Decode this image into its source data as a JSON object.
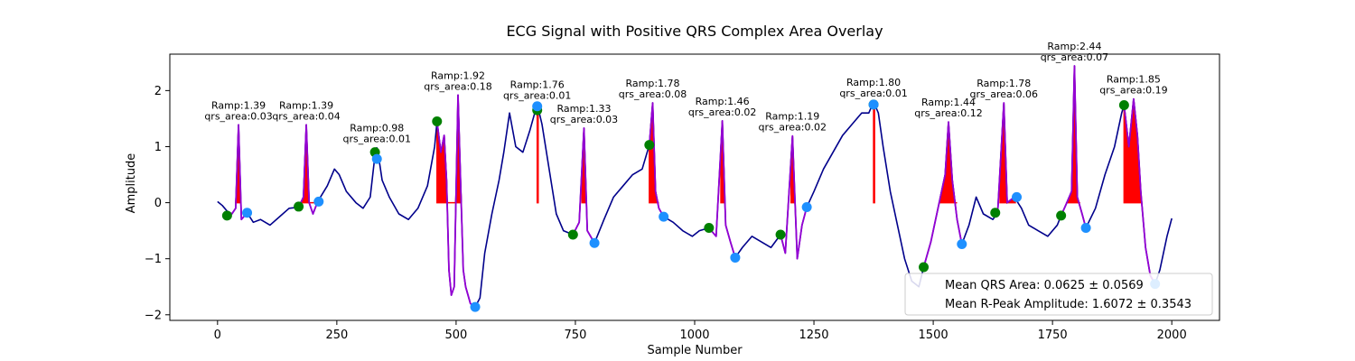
{
  "chart_data": {
    "type": "line",
    "title": "ECG Signal with Positive QRS Complex Area Overlay",
    "xlabel": "Sample Number",
    "ylabel": "Amplitude",
    "xlim": [
      -100,
      2100
    ],
    "ylim": [
      -2.1,
      2.65
    ],
    "x_ticks": [
      0,
      250,
      500,
      750,
      1000,
      1250,
      1500,
      1750,
      2000
    ],
    "y_ticks": [
      -2,
      -1,
      0,
      1,
      2
    ],
    "grid": false,
    "colors": {
      "signal": "#00008b",
      "qrs_segment": "#9400d3",
      "area_fill": "#ff0000",
      "onset_marker": "#008000",
      "offset_marker": "#1e90ff",
      "rpeak_marker": "#1e90ff"
    },
    "signal_keypoints": [
      [
        0,
        0.02
      ],
      [
        10,
        -0.05
      ],
      [
        20,
        -0.15
      ],
      [
        30,
        -0.2
      ],
      [
        38,
        -0.1
      ],
      [
        44,
        1.39
      ],
      [
        50,
        -0.3
      ],
      [
        62,
        -0.18
      ],
      [
        75,
        -0.35
      ],
      [
        90,
        -0.3
      ],
      [
        110,
        -0.4
      ],
      [
        130,
        -0.25
      ],
      [
        150,
        -0.1
      ],
      [
        170,
        -0.08
      ],
      [
        180,
        0.1
      ],
      [
        186,
        1.39
      ],
      [
        192,
        0.0
      ],
      [
        200,
        -0.2
      ],
      [
        210,
        0.02
      ],
      [
        230,
        0.3
      ],
      [
        245,
        0.6
      ],
      [
        255,
        0.5
      ],
      [
        270,
        0.2
      ],
      [
        290,
        0.0
      ],
      [
        305,
        -0.1
      ],
      [
        320,
        0.1
      ],
      [
        330,
        0.85
      ],
      [
        334,
        0.98
      ],
      [
        338,
        0.8
      ],
      [
        345,
        0.4
      ],
      [
        360,
        0.1
      ],
      [
        380,
        -0.2
      ],
      [
        400,
        -0.3
      ],
      [
        420,
        -0.1
      ],
      [
        440,
        0.3
      ],
      [
        455,
        1.0
      ],
      [
        460,
        1.45
      ],
      [
        468,
        0.9
      ],
      [
        475,
        1.2
      ],
      [
        480,
        0.4
      ],
      [
        485,
        -1.2
      ],
      [
        490,
        -1.65
      ],
      [
        496,
        -1.5
      ],
      [
        504,
        1.92
      ],
      [
        510,
        0.2
      ],
      [
        515,
        -1.2
      ],
      [
        520,
        -1.5
      ],
      [
        530,
        -1.8
      ],
      [
        540,
        -1.86
      ],
      [
        550,
        -1.7
      ],
      [
        560,
        -0.9
      ],
      [
        575,
        -0.2
      ],
      [
        590,
        0.4
      ],
      [
        600,
        0.9
      ],
      [
        612,
        1.6
      ],
      [
        625,
        1.0
      ],
      [
        640,
        0.9
      ],
      [
        655,
        1.3
      ],
      [
        670,
        1.76
      ],
      [
        680,
        1.4
      ],
      [
        695,
        0.6
      ],
      [
        710,
        -0.2
      ],
      [
        725,
        -0.5
      ],
      [
        745,
        -0.57
      ],
      [
        758,
        -0.35
      ],
      [
        768,
        1.33
      ],
      [
        775,
        -0.5
      ],
      [
        790,
        -0.72
      ],
      [
        810,
        -0.3
      ],
      [
        830,
        0.1
      ],
      [
        850,
        0.3
      ],
      [
        870,
        0.5
      ],
      [
        890,
        0.6
      ],
      [
        905,
        1.03
      ],
      [
        912,
        1.78
      ],
      [
        918,
        0.2
      ],
      [
        925,
        -0.1
      ],
      [
        935,
        -0.25
      ],
      [
        955,
        -0.35
      ],
      [
        975,
        -0.5
      ],
      [
        995,
        -0.6
      ],
      [
        1010,
        -0.5
      ],
      [
        1030,
        -0.45
      ],
      [
        1045,
        -0.6
      ],
      [
        1058,
        1.46
      ],
      [
        1065,
        -0.4
      ],
      [
        1075,
        -0.7
      ],
      [
        1085,
        -0.98
      ],
      [
        1100,
        -0.8
      ],
      [
        1120,
        -0.6
      ],
      [
        1140,
        -0.7
      ],
      [
        1160,
        -0.8
      ],
      [
        1180,
        -0.57
      ],
      [
        1190,
        -0.9
      ],
      [
        1205,
        1.19
      ],
      [
        1215,
        -1.0
      ],
      [
        1225,
        -0.4
      ],
      [
        1235,
        -0.08
      ],
      [
        1250,
        0.2
      ],
      [
        1270,
        0.6
      ],
      [
        1290,
        0.9
      ],
      [
        1310,
        1.2
      ],
      [
        1330,
        1.4
      ],
      [
        1350,
        1.6
      ],
      [
        1365,
        1.6
      ],
      [
        1375,
        1.8
      ],
      [
        1385,
        1.6
      ],
      [
        1395,
        1.0
      ],
      [
        1410,
        0.2
      ],
      [
        1425,
        -0.4
      ],
      [
        1440,
        -1.0
      ],
      [
        1455,
        -1.4
      ],
      [
        1470,
        -1.5
      ],
      [
        1480,
        -1.15
      ],
      [
        1495,
        -0.7
      ],
      [
        1510,
        -0.1
      ],
      [
        1525,
        0.5
      ],
      [
        1532,
        1.44
      ],
      [
        1540,
        0.4
      ],
      [
        1550,
        -0.3
      ],
      [
        1560,
        -0.74
      ],
      [
        1575,
        -0.4
      ],
      [
        1590,
        0.1
      ],
      [
        1605,
        -0.2
      ],
      [
        1625,
        -0.3
      ],
      [
        1635,
        -0.18
      ],
      [
        1648,
        1.78
      ],
      [
        1655,
        0.0
      ],
      [
        1670,
        0.1
      ],
      [
        1685,
        -0.1
      ],
      [
        1700,
        -0.4
      ],
      [
        1720,
        -0.5
      ],
      [
        1740,
        -0.6
      ],
      [
        1760,
        -0.4
      ],
      [
        1768,
        -0.23
      ],
      [
        1780,
        0.0
      ],
      [
        1790,
        0.2
      ],
      [
        1796,
        2.44
      ],
      [
        1802,
        0.1
      ],
      [
        1812,
        -0.2
      ],
      [
        1820,
        -0.45
      ],
      [
        1840,
        -0.1
      ],
      [
        1860,
        0.5
      ],
      [
        1880,
        1.0
      ],
      [
        1895,
        1.6
      ],
      [
        1900,
        1.74
      ],
      [
        1910,
        1.0
      ],
      [
        1920,
        1.85
      ],
      [
        1928,
        1.2
      ],
      [
        1935,
        0.2
      ],
      [
        1945,
        -0.8
      ],
      [
        1955,
        -1.3
      ],
      [
        1965,
        -1.45
      ],
      [
        1975,
        -1.2
      ],
      [
        1990,
        -0.6
      ],
      [
        2000,
        -0.28
      ]
    ],
    "beats": [
      {
        "onset": 20,
        "offset": 62,
        "rpeak_x": 44,
        "r_amp_label": "Ramp:1.39",
        "qrs_label": "qrs_area:0.03",
        "onset_y": -0.23,
        "offset_y": -0.18,
        "rpeak_y": 1.39,
        "fill_start": 38,
        "fill_end": 48
      },
      {
        "onset": 170,
        "offset": 212,
        "rpeak_x": 186,
        "r_amp_label": "Ramp:1.39",
        "qrs_label": "qrs_area:0.04",
        "onset_y": -0.07,
        "offset_y": 0.02,
        "rpeak_y": 1.39,
        "fill_start": 178,
        "fill_end": 212
      },
      {
        "onset": 330,
        "offset": 334,
        "rpeak_x": 334,
        "r_amp_label": "Ramp:0.98",
        "qrs_label": "qrs_area:0.01",
        "onset_y": 0.9,
        "offset_y": 0.78,
        "rpeak_y": 0.98,
        "fill_start": 0,
        "fill_end": 0
      },
      {
        "onset": 460,
        "offset": 540,
        "rpeak_x": 504,
        "r_amp_label": "Ramp:1.92",
        "qrs_label": "qrs_area:0.18",
        "onset_y": 1.45,
        "offset_y": -1.86,
        "rpeak_y": 1.92,
        "fill_start": 460,
        "fill_end": 512
      },
      {
        "onset": 670,
        "offset": 670,
        "rpeak_x": 670,
        "r_amp_label": "Ramp:1.76",
        "qrs_label": "qrs_area:0.01",
        "onset_y": 1.65,
        "offset_y": 1.72,
        "rpeak_y": 1.76,
        "fill_start": 670,
        "fill_end": 672
      },
      {
        "onset": 745,
        "offset": 790,
        "rpeak_x": 768,
        "r_amp_label": "Ramp:1.33",
        "qrs_label": "qrs_area:0.03",
        "onset_y": -0.57,
        "offset_y": -0.72,
        "rpeak_y": 1.33,
        "fill_start": 764,
        "fill_end": 772
      },
      {
        "onset": 905,
        "offset": 935,
        "rpeak_x": 912,
        "r_amp_label": "Ramp:1.78",
        "qrs_label": "qrs_area:0.08",
        "onset_y": 1.03,
        "offset_y": -0.25,
        "rpeak_y": 1.78,
        "fill_start": 905,
        "fill_end": 925
      },
      {
        "onset": 1030,
        "offset": 1085,
        "rpeak_x": 1058,
        "r_amp_label": "Ramp:1.46",
        "qrs_label": "qrs_area:0.02",
        "onset_y": -0.45,
        "offset_y": -0.98,
        "rpeak_y": 1.46,
        "fill_start": 1055,
        "fill_end": 1062
      },
      {
        "onset": 1180,
        "offset": 1235,
        "rpeak_x": 1205,
        "r_amp_label": "Ramp:1.19",
        "qrs_label": "qrs_area:0.02",
        "onset_y": -0.57,
        "offset_y": -0.08,
        "rpeak_y": 1.19,
        "fill_start": 1202,
        "fill_end": 1208
      },
      {
        "onset": 1375,
        "offset": 1375,
        "rpeak_x": 1375,
        "r_amp_label": "Ramp:1.80",
        "qrs_label": "qrs_area:0.01",
        "onset_y": 1.75,
        "offset_y": 1.75,
        "rpeak_y": 1.8,
        "fill_start": 1375,
        "fill_end": 1377
      },
      {
        "onset": 1480,
        "offset": 1560,
        "rpeak_x": 1532,
        "r_amp_label": "Ramp:1.44",
        "qrs_label": "qrs_area:0.12",
        "onset_y": -1.15,
        "offset_y": -0.74,
        "rpeak_y": 1.44,
        "fill_start": 1515,
        "fill_end": 1550
      },
      {
        "onset": 1630,
        "offset": 1675,
        "rpeak_x": 1648,
        "r_amp_label": "Ramp:1.78",
        "qrs_label": "qrs_area:0.06",
        "onset_y": -0.18,
        "offset_y": 0.1,
        "rpeak_y": 1.78,
        "fill_start": 1640,
        "fill_end": 1672
      },
      {
        "onset": 1768,
        "offset": 1820,
        "rpeak_x": 1796,
        "r_amp_label": "Ramp:2.44",
        "qrs_label": "qrs_area:0.07",
        "onset_y": -0.23,
        "offset_y": -0.45,
        "rpeak_y": 2.44,
        "fill_start": 1778,
        "fill_end": 1808
      },
      {
        "onset": 1900,
        "offset": 1965,
        "rpeak_x": 1920,
        "r_amp_label": "Ramp:1.85",
        "qrs_label": "qrs_area:0.19",
        "onset_y": 1.74,
        "offset_y": -1.45,
        "rpeak_y": 1.85,
        "fill_start": 1900,
        "fill_end": 1935
      }
    ],
    "legend": {
      "position": "lower right",
      "entries": [
        "Mean QRS Area: 0.0625 ± 0.0569",
        "Mean R-Peak Amplitude: 1.6072 ± 0.3543"
      ]
    }
  }
}
